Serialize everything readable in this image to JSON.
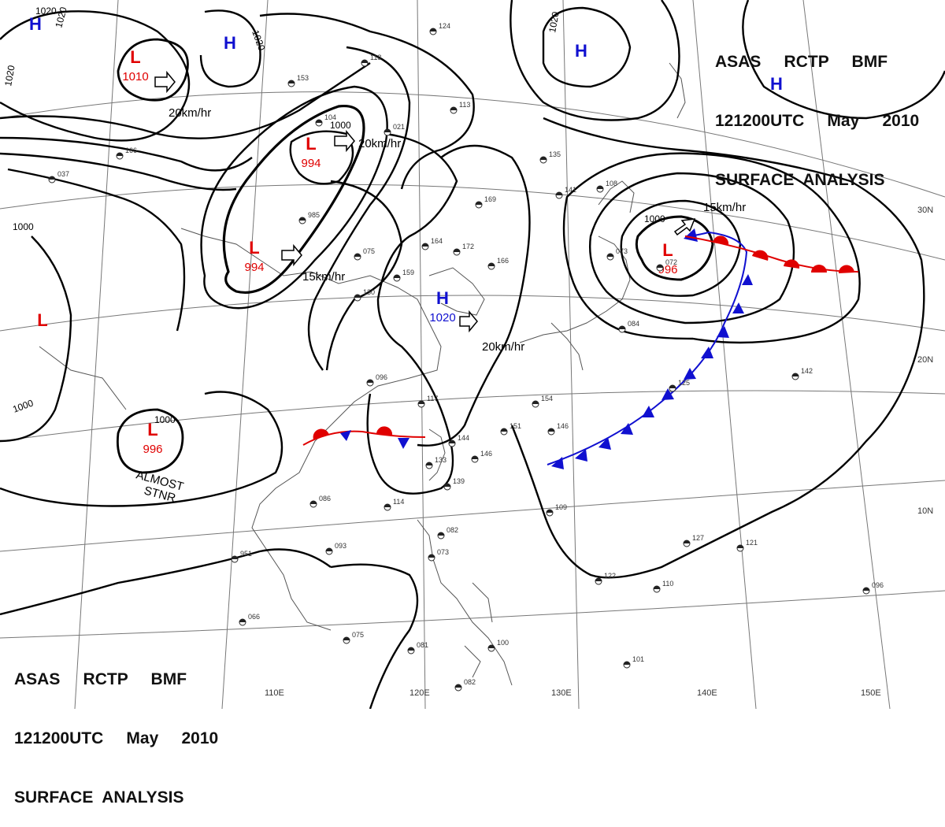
{
  "title_block": {
    "line1": [
      "ASAS",
      "RCTP",
      "BMF"
    ],
    "line2": [
      "121200UTC",
      "May",
      "2010"
    ],
    "line3": "SURFACE  ANALYSIS"
  },
  "longitude_labels": [
    "110E",
    "120E",
    "130E",
    "140E",
    "150E"
  ],
  "latitude_labels": [
    "30N",
    "20N",
    "10N"
  ],
  "pressure_centers": [
    {
      "type": "H",
      "value": ""
    },
    {
      "type": "H",
      "value": ""
    },
    {
      "type": "H",
      "value": ""
    },
    {
      "type": "H",
      "value": ""
    },
    {
      "type": "L",
      "value": "1010"
    },
    {
      "type": "L",
      "value": "994"
    },
    {
      "type": "L",
      "value": "994"
    },
    {
      "type": "L",
      "value": ""
    },
    {
      "type": "L",
      "value": "996"
    },
    {
      "type": "L",
      "value": "996"
    },
    {
      "type": "H",
      "value": "1020"
    }
  ],
  "movement_labels": [
    "20km/hr",
    "20km/hr",
    "15km/hr",
    "15km/hr",
    "20km/hr"
  ],
  "isobar_labels": [
    "1020",
    "1020",
    "1020",
    "1020",
    "1020",
    "1000",
    "1000",
    "1000",
    "1000",
    "1000"
  ],
  "annotation": {
    "line1": "ALMOST",
    "line2": "STNR"
  },
  "station_plots": [
    "124",
    "118",
    "153",
    "104",
    "021",
    "113",
    "166",
    "037",
    "985",
    "075",
    "130",
    "159",
    "172",
    "164",
    "169",
    "135",
    "141",
    "108",
    "073",
    "072",
    "166",
    "084",
    "096",
    "117",
    "144",
    "146",
    "133",
    "139",
    "151",
    "146",
    "154",
    "142",
    "125",
    "109",
    "127",
    "121",
    "122",
    "110",
    "086",
    "114",
    "082",
    "073",
    "093",
    "066",
    "075",
    "081",
    "082",
    "100",
    "101",
    "096",
    "951"
  ],
  "colors": {
    "low": "#e00000",
    "high": "#1010d0",
    "warm_front": "#e00000",
    "cold_front": "#1010d0",
    "isobar": "#000000",
    "grid": "#777777",
    "coast": "#555555"
  }
}
